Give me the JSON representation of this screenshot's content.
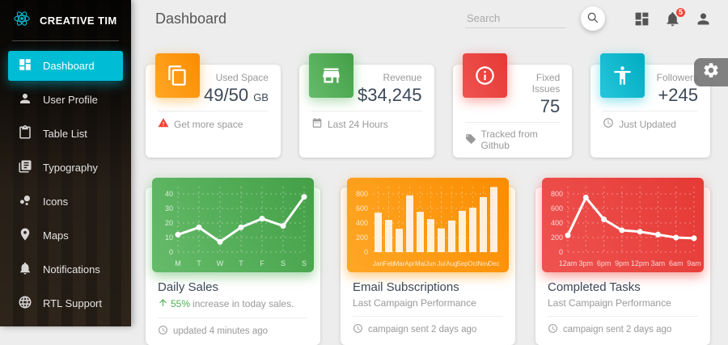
{
  "brand": {
    "name": "CREATIVE TIM"
  },
  "sidebar": {
    "items": [
      {
        "label": "Dashboard",
        "icon": "dashboard-icon",
        "active": true
      },
      {
        "label": "User Profile",
        "icon": "person-icon",
        "active": false
      },
      {
        "label": "Table List",
        "icon": "clipboard-icon",
        "active": false
      },
      {
        "label": "Typography",
        "icon": "typography-icon",
        "active": false
      },
      {
        "label": "Icons",
        "icon": "bubble-chart-icon",
        "active": false
      },
      {
        "label": "Maps",
        "icon": "place-icon",
        "active": false
      },
      {
        "label": "Notifications",
        "icon": "bell-icon",
        "active": false
      },
      {
        "label": "RTL Support",
        "icon": "globe-icon",
        "active": false
      }
    ]
  },
  "topbar": {
    "title": "Dashboard",
    "search_placeholder": "Search",
    "notification_count": "5",
    "icons": [
      "search-icon",
      "dashboard-grid-icon",
      "bell-icon",
      "person-icon"
    ]
  },
  "colors": {
    "accent": "#00bcd4",
    "orange": "#fb8c00",
    "green": "#43a047",
    "red": "#e53935",
    "cyan": "#00acc1",
    "warning": "#f44336",
    "success": "#4caf50"
  },
  "stats": [
    {
      "icon": "copy-icon",
      "color": "orange",
      "label": "Used Space",
      "value": "49/50",
      "unit": "GB",
      "footer_icon": "warning-icon",
      "footer": "Get more space"
    },
    {
      "icon": "store-icon",
      "color": "green",
      "label": "Revenue",
      "value": "$34,245",
      "unit": "",
      "footer_icon": "calendar-icon",
      "footer": "Last 24 Hours"
    },
    {
      "icon": "info-icon",
      "color": "red",
      "label": "Fixed Issues",
      "value": "75",
      "unit": "",
      "footer_icon": "tag-icon",
      "footer": "Tracked from Github"
    },
    {
      "icon": "accessibility-icon",
      "color": "cyan",
      "label": "Followers",
      "value": "+245",
      "unit": "",
      "footer_icon": "update-icon",
      "footer": "Just Updated"
    }
  ],
  "chart_cards": [
    {
      "title": "Daily Sales",
      "subtitle_highlight": "55%",
      "subtitle": "increase in today sales.",
      "footer": "updated 4 minutes ago"
    },
    {
      "title": "Email Subscriptions",
      "subtitle_highlight": "",
      "subtitle": "Last Campaign Performance",
      "footer": "campaign sent 2 days ago"
    },
    {
      "title": "Completed Tasks",
      "subtitle_highlight": "",
      "subtitle": "Last Campaign Performance",
      "footer": "campaign sent 2 days ago"
    }
  ],
  "chart_data": [
    {
      "type": "line",
      "title": "Daily Sales",
      "categories": [
        "M",
        "T",
        "W",
        "T",
        "F",
        "S",
        "S"
      ],
      "values": [
        12,
        17,
        7,
        17,
        23,
        18,
        38
      ],
      "yticks": [
        0,
        10,
        20,
        30,
        40
      ],
      "ylim": [
        0,
        45
      ],
      "xlabel": "",
      "ylabel": "",
      "grid": true,
      "legend_position": "none",
      "panel_color": "green"
    },
    {
      "type": "bar",
      "title": "Email Subscriptions",
      "categories": [
        "Jan",
        "Feb",
        "Mar",
        "Apr",
        "Mai",
        "Jun",
        "Jul",
        "Aug",
        "Sep",
        "Oct",
        "Nov",
        "Dec"
      ],
      "values": [
        542,
        443,
        320,
        780,
        553,
        453,
        326,
        434,
        568,
        610,
        756,
        895
      ],
      "yticks": [
        0,
        200,
        400,
        600,
        800
      ],
      "ylim": [
        0,
        900
      ],
      "xlabel": "",
      "ylabel": "",
      "grid": true,
      "legend_position": "none",
      "panel_color": "orange"
    },
    {
      "type": "line",
      "title": "Completed Tasks",
      "categories": [
        "12am",
        "3pm",
        "6pm",
        "9pm",
        "12pm",
        "3am",
        "6am",
        "9am"
      ],
      "values": [
        230,
        750,
        450,
        300,
        280,
        240,
        200,
        190
      ],
      "yticks": [
        0,
        200,
        400,
        600,
        800
      ],
      "ylim": [
        0,
        900
      ],
      "xlabel": "",
      "ylabel": "",
      "grid": true,
      "legend_position": "none",
      "panel_color": "red"
    }
  ]
}
